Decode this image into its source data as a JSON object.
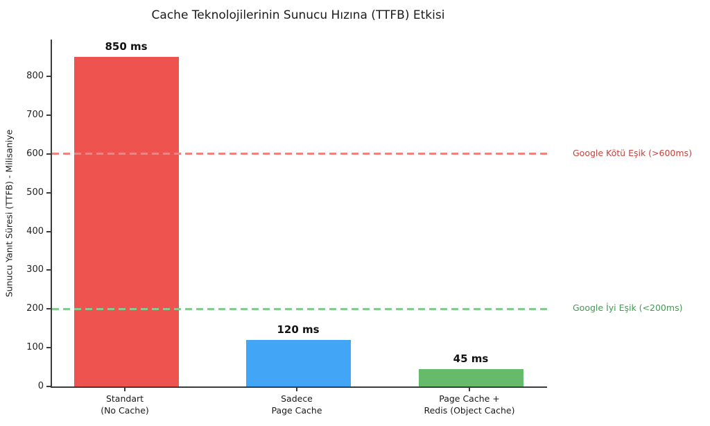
{
  "chart_data": {
    "type": "bar",
    "title": "Cache Teknolojilerinin Sunucu Hızına (TTFB) Etkisi",
    "ylabel": "Sunucu Yanıt Süresi (TTFB) - Milisaniye",
    "xlabel": "",
    "categories": [
      [
        "Standart",
        "(No Cache)"
      ],
      [
        "Sadece",
        "Page Cache"
      ],
      [
        "Page Cache +",
        "Redis (Object Cache)"
      ]
    ],
    "values": [
      850,
      120,
      45
    ],
    "value_labels": [
      "850 ms",
      "120 ms",
      "45 ms"
    ],
    "bar_colors": [
      "#EF5350",
      "#42A5F5",
      "#66BB6A"
    ],
    "ylim": [
      0,
      895
    ],
    "yticks": [
      0,
      100,
      200,
      300,
      400,
      500,
      600,
      700,
      800
    ],
    "grid": false,
    "legend": null,
    "thresholds": [
      {
        "value": 600,
        "label": "Google Kötü Eşik (>600ms)",
        "line_color": "#F0837D",
        "text_color": "#C5413C"
      },
      {
        "value": 200,
        "label": "Google İyi Eşik (<200ms)",
        "line_color": "#85CB8D",
        "text_color": "#3F9B4F"
      }
    ]
  }
}
